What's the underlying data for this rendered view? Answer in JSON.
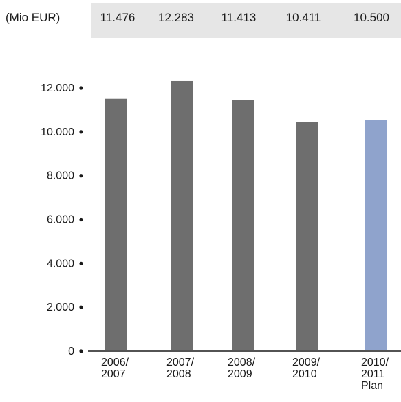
{
  "header": {
    "unit_label": "(Mio EUR)",
    "values": [
      "11.476",
      "12.283",
      "11.413",
      "10.411",
      "10.500"
    ]
  },
  "colors": {
    "actual_bar": "#6e6e6e",
    "plan_bar": "#8fa3cc",
    "strip_background": "#e6e6e6"
  },
  "chart_data": {
    "type": "bar",
    "categories": [
      [
        "2006/",
        "2007"
      ],
      [
        "2007/",
        "2008"
      ],
      [
        "2008/",
        "2009"
      ],
      [
        "2009/",
        "2010"
      ],
      [
        "2010/",
        "2011",
        "Plan"
      ]
    ],
    "values": [
      11476,
      12283,
      11413,
      10411,
      10500
    ],
    "plan_flags": [
      false,
      false,
      false,
      false,
      true
    ],
    "y_ticks": [
      "0",
      "2.000",
      "4.000",
      "6.000",
      "8.000",
      "10.000",
      "12.000"
    ],
    "y_tick_values": [
      0,
      2000,
      4000,
      6000,
      8000,
      10000,
      12000
    ],
    "ylim": [
      0,
      12000
    ],
    "grid": false,
    "title": "",
    "xlabel": "",
    "ylabel": ""
  }
}
